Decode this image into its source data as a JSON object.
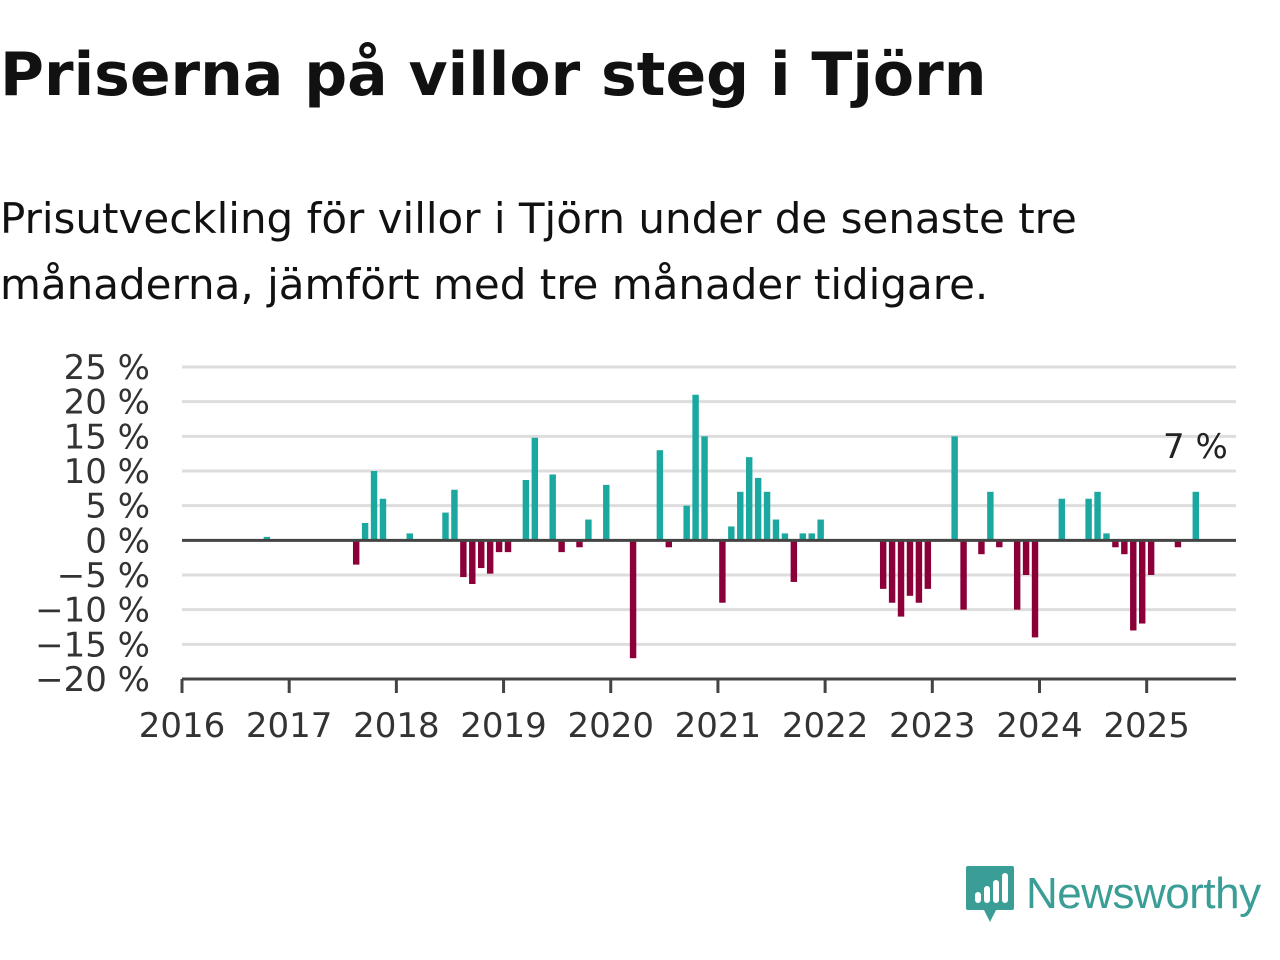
{
  "title": "Priserna på villor steg i Tjörn",
  "subtitle": "Prisutveckling för villor i Tjörn under de senaste tre månaderna, jämfört med tre månader tidigare.",
  "brand": {
    "name": "Newsworthy",
    "color": "#3a9e96",
    "icon": "newsworthy-logo-icon"
  },
  "colors": {
    "positive": "#1aa8a0",
    "negative": "#8b0038",
    "grid": "#dddddd",
    "axis": "#444444"
  },
  "chart_data": {
    "type": "bar",
    "title": "Priserna på villor steg i Tjörn",
    "xlabel": "",
    "ylabel": "",
    "ylim": [
      -20,
      25
    ],
    "y_ticks": [
      25,
      20,
      15,
      10,
      5,
      0,
      -5,
      -10,
      -15,
      -20
    ],
    "y_tick_labels": [
      "25 %",
      "20 %",
      "15 %",
      "10 %",
      "5 %",
      "0 %",
      "−5 %",
      "−10 %",
      "−15 %",
      "−20 %"
    ],
    "x_tick_labels": [
      "2016",
      "2017",
      "2018",
      "2019",
      "2020",
      "2021",
      "2022",
      "2023",
      "2024",
      "2025"
    ],
    "x_range": [
      "2016-01",
      "2025-11"
    ],
    "grid": true,
    "annotation": {
      "text": "7 %",
      "date": "2025-06",
      "value": 7
    },
    "points": [
      {
        "date": "2016-10",
        "value": 0.5
      },
      {
        "date": "2017-08",
        "value": -3.5
      },
      {
        "date": "2017-09",
        "value": 2.5
      },
      {
        "date": "2017-10",
        "value": 10
      },
      {
        "date": "2017-11",
        "value": 6
      },
      {
        "date": "2018-02",
        "value": 1
      },
      {
        "date": "2018-06",
        "value": 4
      },
      {
        "date": "2018-07",
        "value": 7.3
      },
      {
        "date": "2018-08",
        "value": -5.3
      },
      {
        "date": "2018-09",
        "value": -6.3
      },
      {
        "date": "2018-10",
        "value": -4
      },
      {
        "date": "2018-11",
        "value": -4.8
      },
      {
        "date": "2018-12",
        "value": -1.7
      },
      {
        "date": "2019-01",
        "value": -1.7
      },
      {
        "date": "2019-03",
        "value": 8.7
      },
      {
        "date": "2019-04",
        "value": 14.8
      },
      {
        "date": "2019-06",
        "value": 9.5
      },
      {
        "date": "2019-07",
        "value": -1.7
      },
      {
        "date": "2019-09",
        "value": -1
      },
      {
        "date": "2019-10",
        "value": 3
      },
      {
        "date": "2019-12",
        "value": 8
      },
      {
        "date": "2020-03",
        "value": -17
      },
      {
        "date": "2020-06",
        "value": 13
      },
      {
        "date": "2020-07",
        "value": -1
      },
      {
        "date": "2020-09",
        "value": 5
      },
      {
        "date": "2020-10",
        "value": 21
      },
      {
        "date": "2020-11",
        "value": 15
      },
      {
        "date": "2021-01",
        "value": -9
      },
      {
        "date": "2021-02",
        "value": 2
      },
      {
        "date": "2021-03",
        "value": 7
      },
      {
        "date": "2021-04",
        "value": 12
      },
      {
        "date": "2021-05",
        "value": 9
      },
      {
        "date": "2021-06",
        "value": 7
      },
      {
        "date": "2021-07",
        "value": 3
      },
      {
        "date": "2021-08",
        "value": 1
      },
      {
        "date": "2021-09",
        "value": -6
      },
      {
        "date": "2021-10",
        "value": 1
      },
      {
        "date": "2021-11",
        "value": 1
      },
      {
        "date": "2021-12",
        "value": 3
      },
      {
        "date": "2022-07",
        "value": -7
      },
      {
        "date": "2022-08",
        "value": -9
      },
      {
        "date": "2022-09",
        "value": -11
      },
      {
        "date": "2022-10",
        "value": -8
      },
      {
        "date": "2022-11",
        "value": -9
      },
      {
        "date": "2022-12",
        "value": -7
      },
      {
        "date": "2023-03",
        "value": 15
      },
      {
        "date": "2023-04",
        "value": -10
      },
      {
        "date": "2023-06",
        "value": -2
      },
      {
        "date": "2023-07",
        "value": 7
      },
      {
        "date": "2023-08",
        "value": -1
      },
      {
        "date": "2023-10",
        "value": -10
      },
      {
        "date": "2023-11",
        "value": -5
      },
      {
        "date": "2023-12",
        "value": -14
      },
      {
        "date": "2024-03",
        "value": 6
      },
      {
        "date": "2024-06",
        "value": 6
      },
      {
        "date": "2024-07",
        "value": 7
      },
      {
        "date": "2024-08",
        "value": 1
      },
      {
        "date": "2024-09",
        "value": -1
      },
      {
        "date": "2024-10",
        "value": -2
      },
      {
        "date": "2024-11",
        "value": -13
      },
      {
        "date": "2024-12",
        "value": -12
      },
      {
        "date": "2025-01",
        "value": -5
      },
      {
        "date": "2025-04",
        "value": -1
      },
      {
        "date": "2025-06",
        "value": 7
      }
    ]
  }
}
